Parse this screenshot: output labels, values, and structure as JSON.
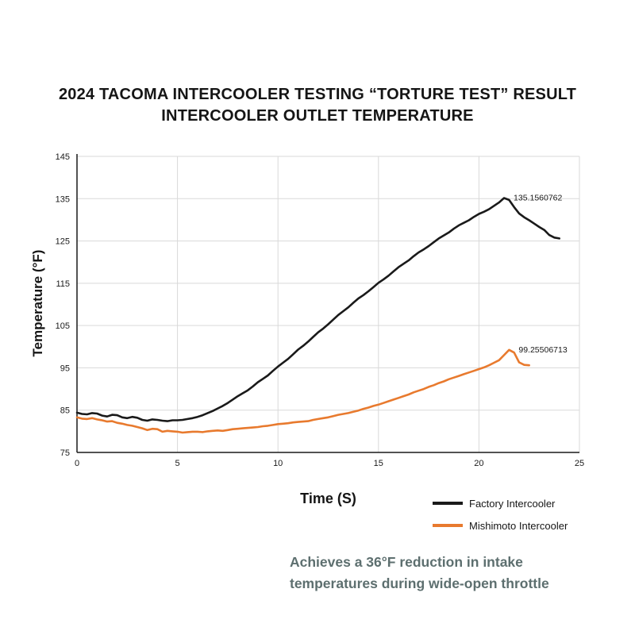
{
  "title": {
    "line1": "2024 TACOMA INTERCOOLER TESTING “TORTURE TEST” RESULT",
    "line2": "INTERCOOLER OUTLET TEMPERATURE"
  },
  "caption": {
    "line1": "Achieves a 36°F reduction in intake",
    "line2": "temperatures during wide-open throttle"
  },
  "chart_data": {
    "type": "line",
    "title": "2024 Tacoma Intercooler Testing “Torture Test” Result — Intercooler Outlet Temperature",
    "xlabel": "Time (S)",
    "ylabel": "Temperature (°F)",
    "xlim": [
      0,
      25
    ],
    "ylim": [
      75,
      145
    ],
    "xticks": [
      0,
      5,
      10,
      15,
      20,
      25
    ],
    "yticks": [
      75,
      85,
      95,
      105,
      115,
      125,
      135,
      145
    ],
    "grid": true,
    "grid_color": "#d9d9d9",
    "axis_color": "#1a1a1a",
    "legend_position": "below-right",
    "series": [
      {
        "name": "Factory Intercooler",
        "color": "#1a1a1a",
        "peak_label": "135.1560762",
        "points": [
          [
            0,
            84.4
          ],
          [
            0.25,
            84.1
          ],
          [
            0.5,
            84.0
          ],
          [
            0.75,
            84.3
          ],
          [
            1,
            84.2
          ],
          [
            1.25,
            83.7
          ],
          [
            1.5,
            83.5
          ],
          [
            1.75,
            83.9
          ],
          [
            2,
            83.8
          ],
          [
            2.25,
            83.3
          ],
          [
            2.5,
            83.1
          ],
          [
            2.75,
            83.4
          ],
          [
            3,
            83.2
          ],
          [
            3.25,
            82.7
          ],
          [
            3.5,
            82.5
          ],
          [
            3.75,
            82.8
          ],
          [
            4,
            82.7
          ],
          [
            4.25,
            82.5
          ],
          [
            4.5,
            82.4
          ],
          [
            4.75,
            82.6
          ],
          [
            5,
            82.6
          ],
          [
            5.25,
            82.7
          ],
          [
            5.5,
            82.9
          ],
          [
            5.75,
            83.1
          ],
          [
            6,
            83.4
          ],
          [
            6.25,
            83.8
          ],
          [
            6.5,
            84.3
          ],
          [
            6.75,
            84.8
          ],
          [
            7,
            85.4
          ],
          [
            7.25,
            86.0
          ],
          [
            7.5,
            86.7
          ],
          [
            7.75,
            87.5
          ],
          [
            8,
            88.3
          ],
          [
            8.25,
            89.0
          ],
          [
            8.5,
            89.7
          ],
          [
            8.75,
            90.6
          ],
          [
            9,
            91.6
          ],
          [
            9.25,
            92.4
          ],
          [
            9.5,
            93.2
          ],
          [
            9.75,
            94.3
          ],
          [
            10,
            95.3
          ],
          [
            10.25,
            96.2
          ],
          [
            10.5,
            97.1
          ],
          [
            10.75,
            98.2
          ],
          [
            11,
            99.3
          ],
          [
            11.25,
            100.2
          ],
          [
            11.5,
            101.2
          ],
          [
            11.75,
            102.3
          ],
          [
            12,
            103.4
          ],
          [
            12.25,
            104.3
          ],
          [
            12.5,
            105.3
          ],
          [
            12.75,
            106.4
          ],
          [
            13,
            107.5
          ],
          [
            13.25,
            108.4
          ],
          [
            13.5,
            109.3
          ],
          [
            13.75,
            110.4
          ],
          [
            14,
            111.4
          ],
          [
            14.25,
            112.2
          ],
          [
            14.5,
            113.1
          ],
          [
            14.75,
            114.1
          ],
          [
            15,
            115.1
          ],
          [
            15.25,
            115.9
          ],
          [
            15.5,
            116.8
          ],
          [
            15.75,
            117.8
          ],
          [
            16,
            118.8
          ],
          [
            16.25,
            119.6
          ],
          [
            16.5,
            120.4
          ],
          [
            16.75,
            121.4
          ],
          [
            17,
            122.3
          ],
          [
            17.25,
            123.0
          ],
          [
            17.5,
            123.8
          ],
          [
            17.75,
            124.7
          ],
          [
            18,
            125.6
          ],
          [
            18.25,
            126.3
          ],
          [
            18.5,
            127.0
          ],
          [
            18.75,
            127.9
          ],
          [
            19,
            128.7
          ],
          [
            19.25,
            129.3
          ],
          [
            19.5,
            129.9
          ],
          [
            19.75,
            130.7
          ],
          [
            20,
            131.4
          ],
          [
            20.25,
            131.9
          ],
          [
            20.5,
            132.5
          ],
          [
            20.75,
            133.3
          ],
          [
            21,
            134.1
          ],
          [
            21.25,
            135.156
          ],
          [
            21.5,
            134.7
          ],
          [
            21.75,
            133.0
          ],
          [
            22,
            131.5
          ],
          [
            22.25,
            130.6
          ],
          [
            22.5,
            129.9
          ],
          [
            22.75,
            129.1
          ],
          [
            23,
            128.3
          ],
          [
            23.25,
            127.6
          ],
          [
            23.5,
            126.4
          ],
          [
            23.75,
            125.8
          ],
          [
            24,
            125.6
          ]
        ]
      },
      {
        "name": "Mishimoto Intercooler",
        "color": "#e87a2e",
        "peak_label": "99.25506713",
        "points": [
          [
            0,
            83.3
          ],
          [
            0.25,
            83.0
          ],
          [
            0.5,
            82.9
          ],
          [
            0.75,
            83.1
          ],
          [
            1,
            82.8
          ],
          [
            1.25,
            82.6
          ],
          [
            1.5,
            82.3
          ],
          [
            1.75,
            82.4
          ],
          [
            2,
            82.0
          ],
          [
            2.25,
            81.8
          ],
          [
            2.5,
            81.5
          ],
          [
            2.75,
            81.3
          ],
          [
            3,
            81.0
          ],
          [
            3.25,
            80.7
          ],
          [
            3.5,
            80.3
          ],
          [
            3.75,
            80.6
          ],
          [
            4,
            80.5
          ],
          [
            4.25,
            79.9
          ],
          [
            4.5,
            80.1
          ],
          [
            4.75,
            80.0
          ],
          [
            5,
            79.9
          ],
          [
            5.25,
            79.7
          ],
          [
            5.5,
            79.8
          ],
          [
            5.75,
            79.9
          ],
          [
            6,
            79.9
          ],
          [
            6.25,
            79.8
          ],
          [
            6.5,
            80.0
          ],
          [
            6.75,
            80.1
          ],
          [
            7,
            80.2
          ],
          [
            7.25,
            80.1
          ],
          [
            7.5,
            80.3
          ],
          [
            7.75,
            80.5
          ],
          [
            8,
            80.6
          ],
          [
            8.25,
            80.7
          ],
          [
            8.5,
            80.8
          ],
          [
            8.75,
            80.9
          ],
          [
            9,
            81.0
          ],
          [
            9.25,
            81.2
          ],
          [
            9.5,
            81.3
          ],
          [
            9.75,
            81.5
          ],
          [
            10,
            81.7
          ],
          [
            10.25,
            81.8
          ],
          [
            10.5,
            81.9
          ],
          [
            10.75,
            82.1
          ],
          [
            11,
            82.2
          ],
          [
            11.25,
            82.3
          ],
          [
            11.5,
            82.4
          ],
          [
            11.75,
            82.7
          ],
          [
            12,
            82.9
          ],
          [
            12.25,
            83.1
          ],
          [
            12.5,
            83.3
          ],
          [
            12.75,
            83.6
          ],
          [
            13,
            83.9
          ],
          [
            13.25,
            84.1
          ],
          [
            13.5,
            84.3
          ],
          [
            13.75,
            84.6
          ],
          [
            14,
            84.9
          ],
          [
            14.25,
            85.3
          ],
          [
            14.5,
            85.6
          ],
          [
            14.75,
            86.0
          ],
          [
            15,
            86.3
          ],
          [
            15.25,
            86.7
          ],
          [
            15.5,
            87.1
          ],
          [
            15.75,
            87.5
          ],
          [
            16,
            87.9
          ],
          [
            16.25,
            88.3
          ],
          [
            16.5,
            88.7
          ],
          [
            16.75,
            89.2
          ],
          [
            17,
            89.6
          ],
          [
            17.25,
            90.0
          ],
          [
            17.5,
            90.5
          ],
          [
            17.75,
            90.9
          ],
          [
            18,
            91.4
          ],
          [
            18.25,
            91.8
          ],
          [
            18.5,
            92.3
          ],
          [
            18.75,
            92.7
          ],
          [
            19,
            93.1
          ],
          [
            19.25,
            93.5
          ],
          [
            19.5,
            93.9
          ],
          [
            19.75,
            94.3
          ],
          [
            20,
            94.7
          ],
          [
            20.25,
            95.1
          ],
          [
            20.5,
            95.6
          ],
          [
            20.75,
            96.2
          ],
          [
            21,
            96.8
          ],
          [
            21.25,
            98.0
          ],
          [
            21.5,
            99.255
          ],
          [
            21.75,
            98.6
          ],
          [
            22,
            96.3
          ],
          [
            22.25,
            95.7
          ],
          [
            22.5,
            95.6
          ]
        ]
      }
    ]
  }
}
